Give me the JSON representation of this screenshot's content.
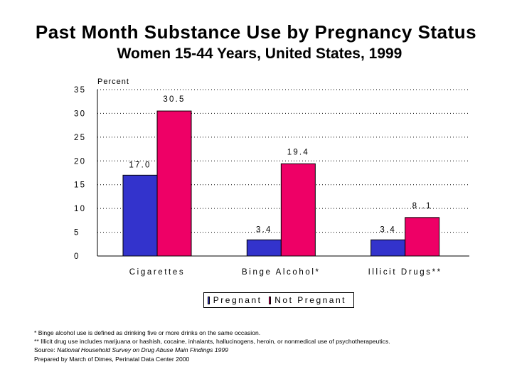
{
  "header": {
    "title": "Past Month Substance Use by Pregnancy Status",
    "subtitle": "Women 15-44 Years, United States, 1999"
  },
  "chart_data": {
    "type": "bar",
    "title": "Past Month Substance Use by Pregnancy Status",
    "subtitle": "Women 15-44 Years, United States, 1999",
    "xlabel": "",
    "ylabel": "Percent",
    "ylim": [
      0,
      35
    ],
    "yticks": [
      0,
      5,
      10,
      15,
      20,
      25,
      30,
      35
    ],
    "grid": "horizontal dotted",
    "categories": [
      "Cigarettes",
      "Binge Alcohol*",
      "Illicit Drugs**"
    ],
    "series": [
      {
        "name": "Pregnant",
        "color": "#3333cc",
        "values": [
          17.0,
          3.4,
          3.4
        ],
        "labels": [
          "17.0",
          "3.4",
          "3.4"
        ]
      },
      {
        "name": "Not Pregnant",
        "color": "#ee0066",
        "values": [
          30.5,
          19.4,
          8.1
        ],
        "labels": [
          "30.5",
          "19.4",
          "8..1"
        ]
      }
    ],
    "legend": "bottom-center"
  },
  "footnotes": {
    "note1": "* Binge alcohol use is defined as drinking five or more drinks on the same occasion.",
    "note2": "** Illicit drug use includes marijuana or hashish, cocaine, inhalants, hallucinogens, heroin, or nonmedical use of psychotherapeutics.",
    "source_prefix": "Source: ",
    "source_title": "National Household Survey on Drug Abuse Main Findings 1999",
    "prepared": "Prepared by March of Dimes, Perinatal Data Center 2000"
  }
}
